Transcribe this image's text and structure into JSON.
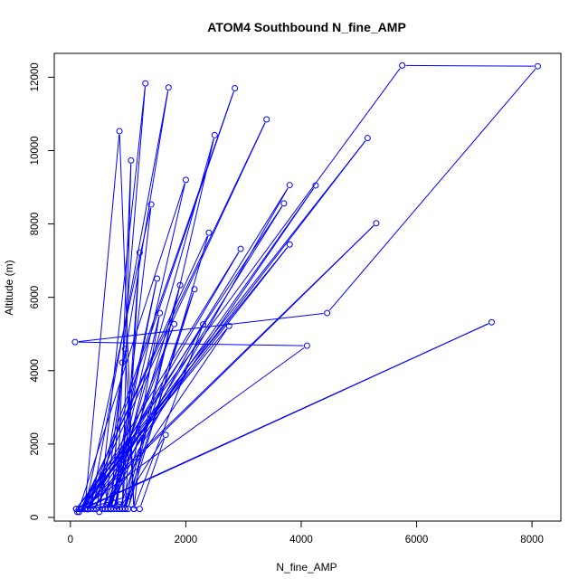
{
  "chart_data": {
    "type": "line",
    "title": "ATOM4 Southbound N_fine_AMP",
    "xlabel": "N_fine_AMP",
    "ylabel": "Altitude (m)",
    "xlim": [
      -280,
      8500
    ],
    "ylim": [
      -100,
      12650
    ],
    "xticks": [
      0,
      2000,
      4000,
      6000,
      8000
    ],
    "yticks": [
      0,
      2000,
      4000,
      6000,
      8000,
      10000,
      12000
    ],
    "grid": false,
    "legend": "none",
    "color": "#0000ff",
    "markers": "open-circle",
    "x": [
      100,
      5750,
      8100,
      4450,
      80,
      4100,
      120,
      7300,
      200,
      3800,
      100,
      5150,
      150,
      5300,
      250,
      3400,
      180,
      2950,
      300,
      2850,
      350,
      1700,
      500,
      1300,
      700,
      2500,
      1000,
      2400,
      200,
      3700,
      400,
      4250,
      300,
      3800,
      600,
      2750,
      150,
      2000,
      700,
      1500,
      650,
      1800,
      550,
      2300,
      1100,
      850,
      250,
      1400,
      800,
      1050,
      900,
      1200,
      950,
      1900,
      750,
      1550,
      950,
      2150,
      850,
      1650,
      1200,
      750,
      600,
      950,
      1100,
      1250,
      650,
      550,
      450,
      850,
      900,
      1000,
      250,
      800,
      700,
      900
    ],
    "y": [
      230,
      12320,
      12300,
      5570,
      4780,
      4680,
      150,
      5320,
      230,
      7440,
      230,
      10340,
      150,
      8020,
      230,
      10850,
      230,
      7320,
      220,
      11700,
      230,
      11720,
      150,
      11830,
      230,
      10420,
      230,
      7760,
      230,
      8560,
      230,
      9050,
      230,
      9060,
      230,
      5220,
      230,
      9200,
      230,
      6510,
      230,
      5270,
      230,
      5260,
      230,
      10530,
      230,
      8530,
      230,
      9730,
      230,
      7220,
      230,
      6330,
      230,
      5570,
      230,
      6220,
      230,
      2250,
      230,
      400,
      230,
      4590,
      230,
      2300,
      400,
      1150,
      230,
      350,
      230,
      570,
      230,
      310,
      230,
      4220
    ]
  }
}
